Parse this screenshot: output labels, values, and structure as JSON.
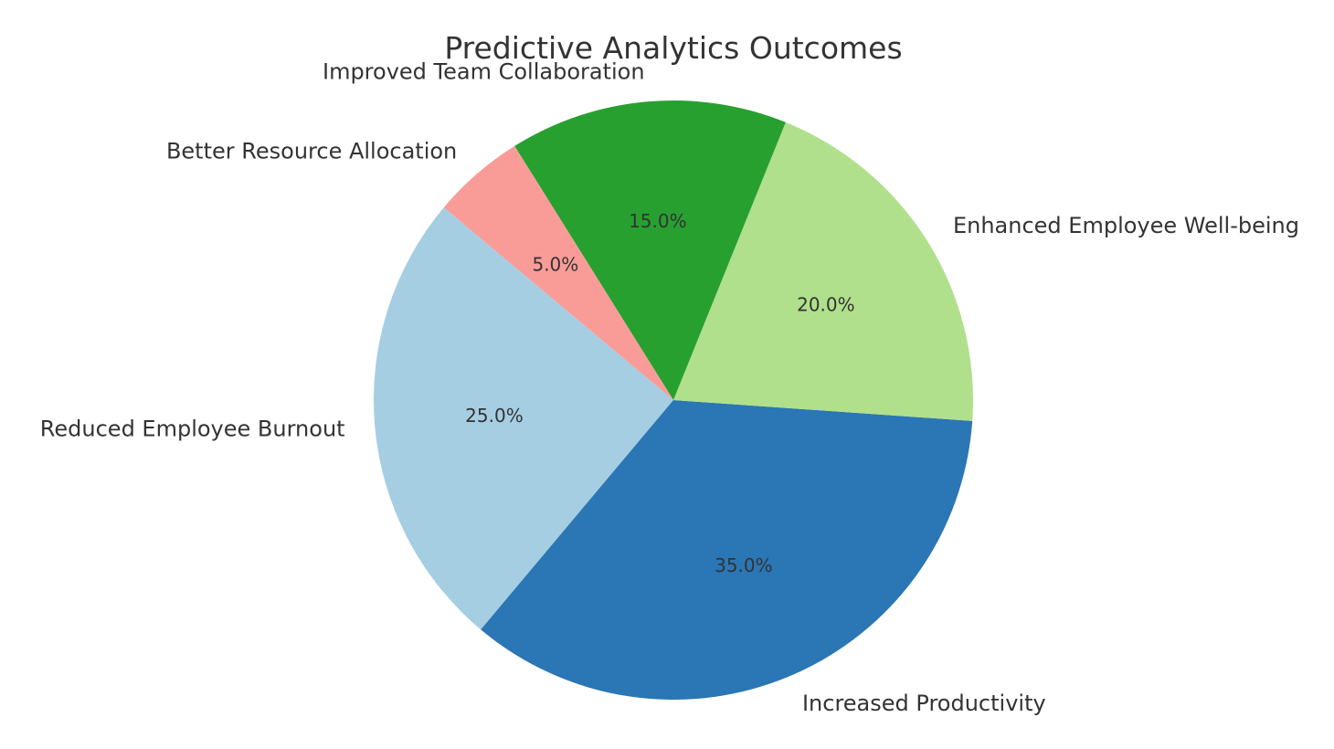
{
  "chart_data": {
    "type": "pie",
    "title": "Predictive Analytics Outcomes",
    "categories": [
      "Reduced Employee Burnout",
      "Increased Productivity",
      "Enhanced Employee Well-being",
      "Improved Team Collaboration",
      "Better Resource Allocation"
    ],
    "values": [
      25,
      35,
      20,
      15,
      5
    ],
    "percent_labels": [
      "25.0%",
      "35.0%",
      "20.0%",
      "15.0%",
      "5.0%"
    ],
    "colors": [
      "#a6cee3",
      "#2b76b4",
      "#b0e08c",
      "#27a030",
      "#f99c98"
    ],
    "start_angle_deg": 140,
    "direction": "counterclockwise",
    "legend": "none"
  }
}
